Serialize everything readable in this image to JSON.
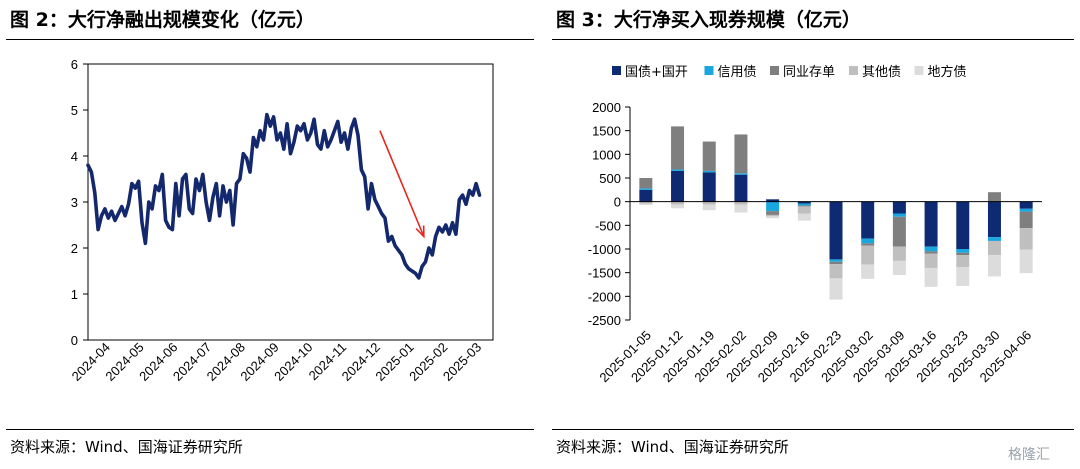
{
  "left": {
    "title": "图 2：大行净融出规模变化（亿元）",
    "source": "资料来源：Wind、国海证券研究所"
  },
  "right": {
    "title": "图 3：大行净买入现券规模（亿元）",
    "source": "资料来源：Wind、国海证券研究所"
  },
  "watermark": "格隆汇",
  "colors": {
    "line": "#14286e",
    "arrow": "#e8261e",
    "guozhai": "#0d2a72",
    "xinyong": "#1aa7e0",
    "tongye": "#7f7f7f",
    "qita": "#bfbfbf",
    "difang": "#dcdcdc"
  },
  "chart_data": [
    {
      "type": "line",
      "title": "",
      "xlabel": "",
      "ylabel": "",
      "ylim": [
        0,
        6
      ],
      "yticks": [
        0,
        1,
        2,
        3,
        4,
        5,
        6
      ],
      "x_tick_labels": [
        "2024-04",
        "2024-05",
        "2024-06",
        "2024-07",
        "2024-08",
        "2024-09",
        "2024-10",
        "2024-11",
        "2024-12",
        "2025-01",
        "2025-02",
        "2025-03"
      ],
      "x_range_months": [
        0,
        12.0
      ],
      "grid": false,
      "legend": "none",
      "annotation": "red downward arrow from late 2024-12 toward early 2025-02",
      "annotation_arrow": {
        "from": [
          8.65,
          4.55
        ],
        "to": [
          9.95,
          2.25
        ]
      },
      "series": [
        {
          "x": [
            0.0,
            0.1,
            0.2,
            0.3,
            0.4,
            0.5,
            0.6,
            0.7,
            0.8,
            0.9,
            1.0,
            1.1,
            1.2,
            1.3,
            1.4,
            1.5,
            1.6,
            1.7,
            1.8,
            1.9,
            2.0,
            2.1,
            2.2,
            2.3,
            2.4,
            2.5,
            2.6,
            2.7,
            2.8,
            2.9,
            3.0,
            3.1,
            3.2,
            3.3,
            3.4,
            3.5,
            3.6,
            3.7,
            3.8,
            3.9,
            4.0,
            4.1,
            4.2,
            4.3,
            4.4,
            4.5,
            4.6,
            4.7,
            4.8,
            4.9,
            5.0,
            5.1,
            5.2,
            5.3,
            5.4,
            5.5,
            5.6,
            5.7,
            5.8,
            5.9,
            6.0,
            6.1,
            6.2,
            6.3,
            6.4,
            6.5,
            6.6,
            6.7,
            6.8,
            6.9,
            7.0,
            7.1,
            7.2,
            7.3,
            7.4,
            7.5,
            7.6,
            7.7,
            7.8,
            7.9,
            8.0,
            8.1,
            8.2,
            8.3,
            8.4,
            8.5,
            8.6,
            8.7,
            8.8,
            8.9,
            9.0,
            9.1,
            9.2,
            9.3,
            9.4,
            9.5,
            9.6,
            9.7,
            9.8,
            9.9,
            10.0,
            10.1,
            10.2,
            10.3,
            10.4,
            10.5,
            10.6,
            10.7,
            10.8,
            10.9,
            11.0,
            11.1,
            11.2,
            11.3,
            11.4,
            11.5,
            11.6
          ],
          "values": [
            3.8,
            3.65,
            3.2,
            2.4,
            2.7,
            2.85,
            2.65,
            2.8,
            2.6,
            2.75,
            2.9,
            2.7,
            2.95,
            3.4,
            3.3,
            3.45,
            2.55,
            2.1,
            3.0,
            2.85,
            3.35,
            3.25,
            3.6,
            2.6,
            2.45,
            2.4,
            3.4,
            2.7,
            3.5,
            3.6,
            2.85,
            2.75,
            3.5,
            3.25,
            3.6,
            3.0,
            2.6,
            3.1,
            3.4,
            2.7,
            3.35,
            3.0,
            3.25,
            2.5,
            3.4,
            3.5,
            4.05,
            3.95,
            3.65,
            4.4,
            4.2,
            4.55,
            4.35,
            4.9,
            4.65,
            4.85,
            4.35,
            4.5,
            4.15,
            4.7,
            4.05,
            4.3,
            4.65,
            4.55,
            4.7,
            4.35,
            4.5,
            4.8,
            4.25,
            4.15,
            4.55,
            4.2,
            4.35,
            4.55,
            4.75,
            4.3,
            4.5,
            4.15,
            4.6,
            4.8,
            4.45,
            3.7,
            3.55,
            2.85,
            3.4,
            3.05,
            2.9,
            2.75,
            2.65,
            2.15,
            2.25,
            2.05,
            1.95,
            1.85,
            1.65,
            1.55,
            1.5,
            1.45,
            1.35,
            1.6,
            1.7,
            2.0,
            1.85,
            2.25,
            2.45,
            2.35,
            2.5,
            2.3,
            2.55,
            2.3,
            3.05,
            3.15,
            2.95,
            3.25,
            3.15,
            3.4,
            3.15
          ]
        }
      ]
    },
    {
      "type": "bar",
      "stacked": true,
      "title": "",
      "xlabel": "",
      "ylabel": "",
      "ylim": [
        -2500,
        2000
      ],
      "yticks": [
        2000,
        1500,
        1000,
        500,
        0,
        -500,
        -1000,
        -1500,
        -2000,
        -2500
      ],
      "grid": false,
      "legend": "top",
      "categories": [
        "2025-01-05",
        "2025-01-12",
        "2025-01-19",
        "2025-02-02",
        "2025-02-09",
        "2025-02-16",
        "2025-02-23",
        "2025-03-02",
        "2025-03-09",
        "2025-03-16",
        "2025-03-23",
        "2025-03-30",
        "2025-04-06"
      ],
      "series": [
        {
          "name": "国债+国开",
          "key": "guozhai",
          "values": [
            250,
            650,
            620,
            570,
            50,
            -40,
            -1220,
            -780,
            -250,
            -950,
            -1000,
            -750,
            -150
          ]
        },
        {
          "name": "信用债",
          "key": "xinyong",
          "values": [
            30,
            30,
            30,
            30,
            -200,
            -40,
            -50,
            -100,
            -70,
            -100,
            -80,
            -80,
            -60
          ]
        },
        {
          "name": "同业存单",
          "key": "tongye",
          "values": [
            220,
            910,
            620,
            820,
            -80,
            -20,
            -50,
            -50,
            -630,
            -50,
            -50,
            200,
            -350
          ]
        },
        {
          "name": "其他债",
          "key": "qita",
          "values": [
            -40,
            -60,
            -60,
            -60,
            -30,
            -150,
            -300,
            -400,
            -300,
            -300,
            -250,
            -300,
            -450
          ]
        },
        {
          "name": "地方债",
          "key": "difang",
          "values": [
            -30,
            -80,
            -120,
            -170,
            -40,
            -150,
            -450,
            -300,
            -300,
            -400,
            -400,
            -450,
            -500
          ]
        }
      ]
    }
  ]
}
